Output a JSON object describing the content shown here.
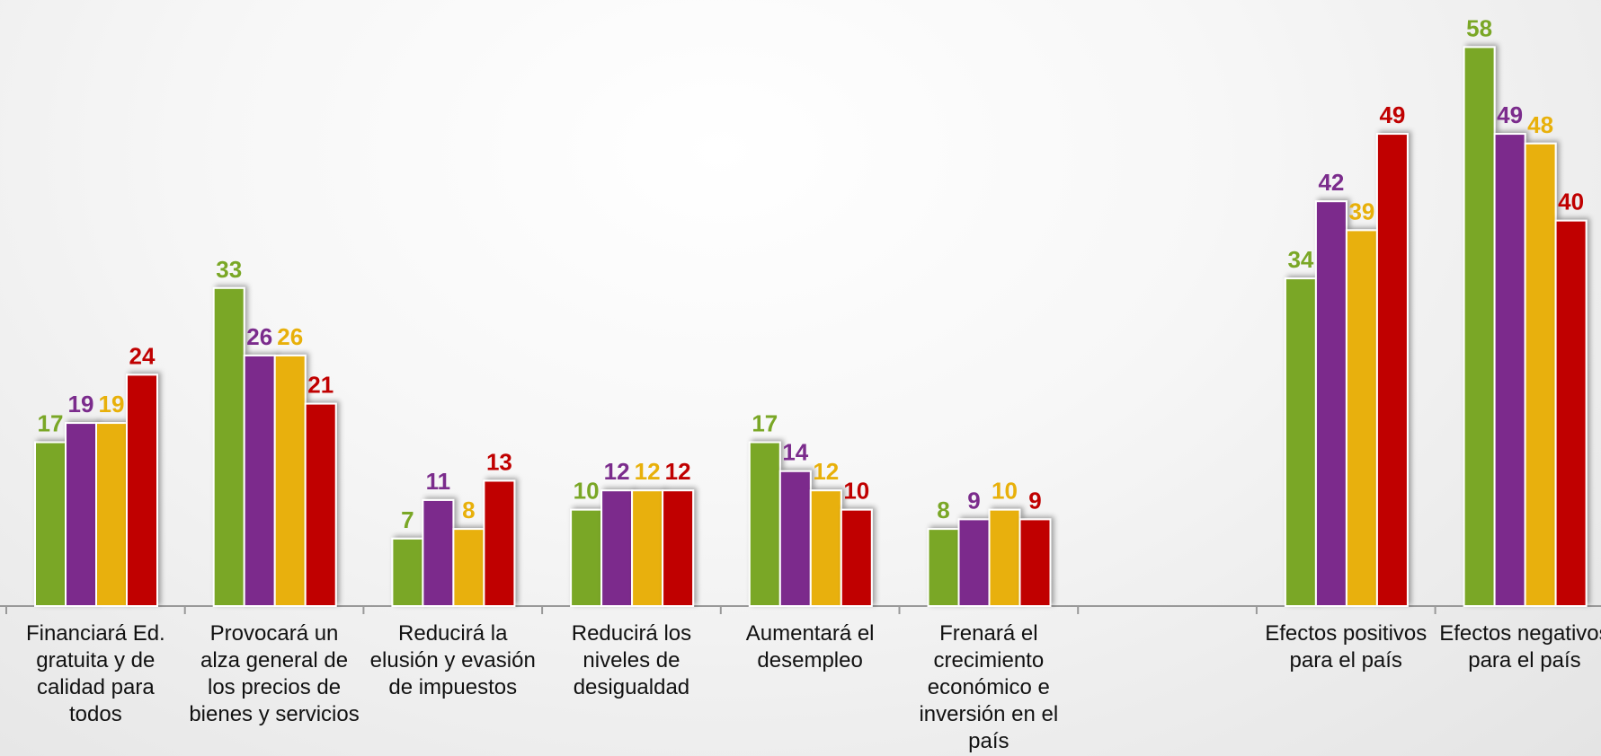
{
  "chart_data": {
    "type": "bar",
    "categories": [
      "Financiará Ed. gratuita y de calidad para todos",
      "Provocará un alza general de los precios de bienes y servicios",
      "Reducirá la elusión  y evasión de impuestos",
      "Reducirá los niveles de desigualdad",
      "Aumentará el desempleo",
      "Frenará el crecimiento económico e inversión en el país",
      null,
      "Efectos positivos para el país",
      "Efectos negativos para el país"
    ],
    "series": [
      {
        "color": "#7aa726",
        "values": [
          17,
          33,
          7,
          10,
          17,
          8,
          null,
          34,
          58
        ]
      },
      {
        "color": "#7b2c8c",
        "values": [
          19,
          26,
          11,
          12,
          14,
          9,
          null,
          42,
          49
        ]
      },
      {
        "color": "#e8b00a",
        "values": [
          19,
          26,
          8,
          12,
          12,
          10,
          null,
          39,
          48
        ]
      },
      {
        "color": "#c00000",
        "values": [
          24,
          21,
          13,
          12,
          10,
          9,
          null,
          49,
          40
        ]
      }
    ],
    "ylim": [
      0,
      60
    ]
  }
}
